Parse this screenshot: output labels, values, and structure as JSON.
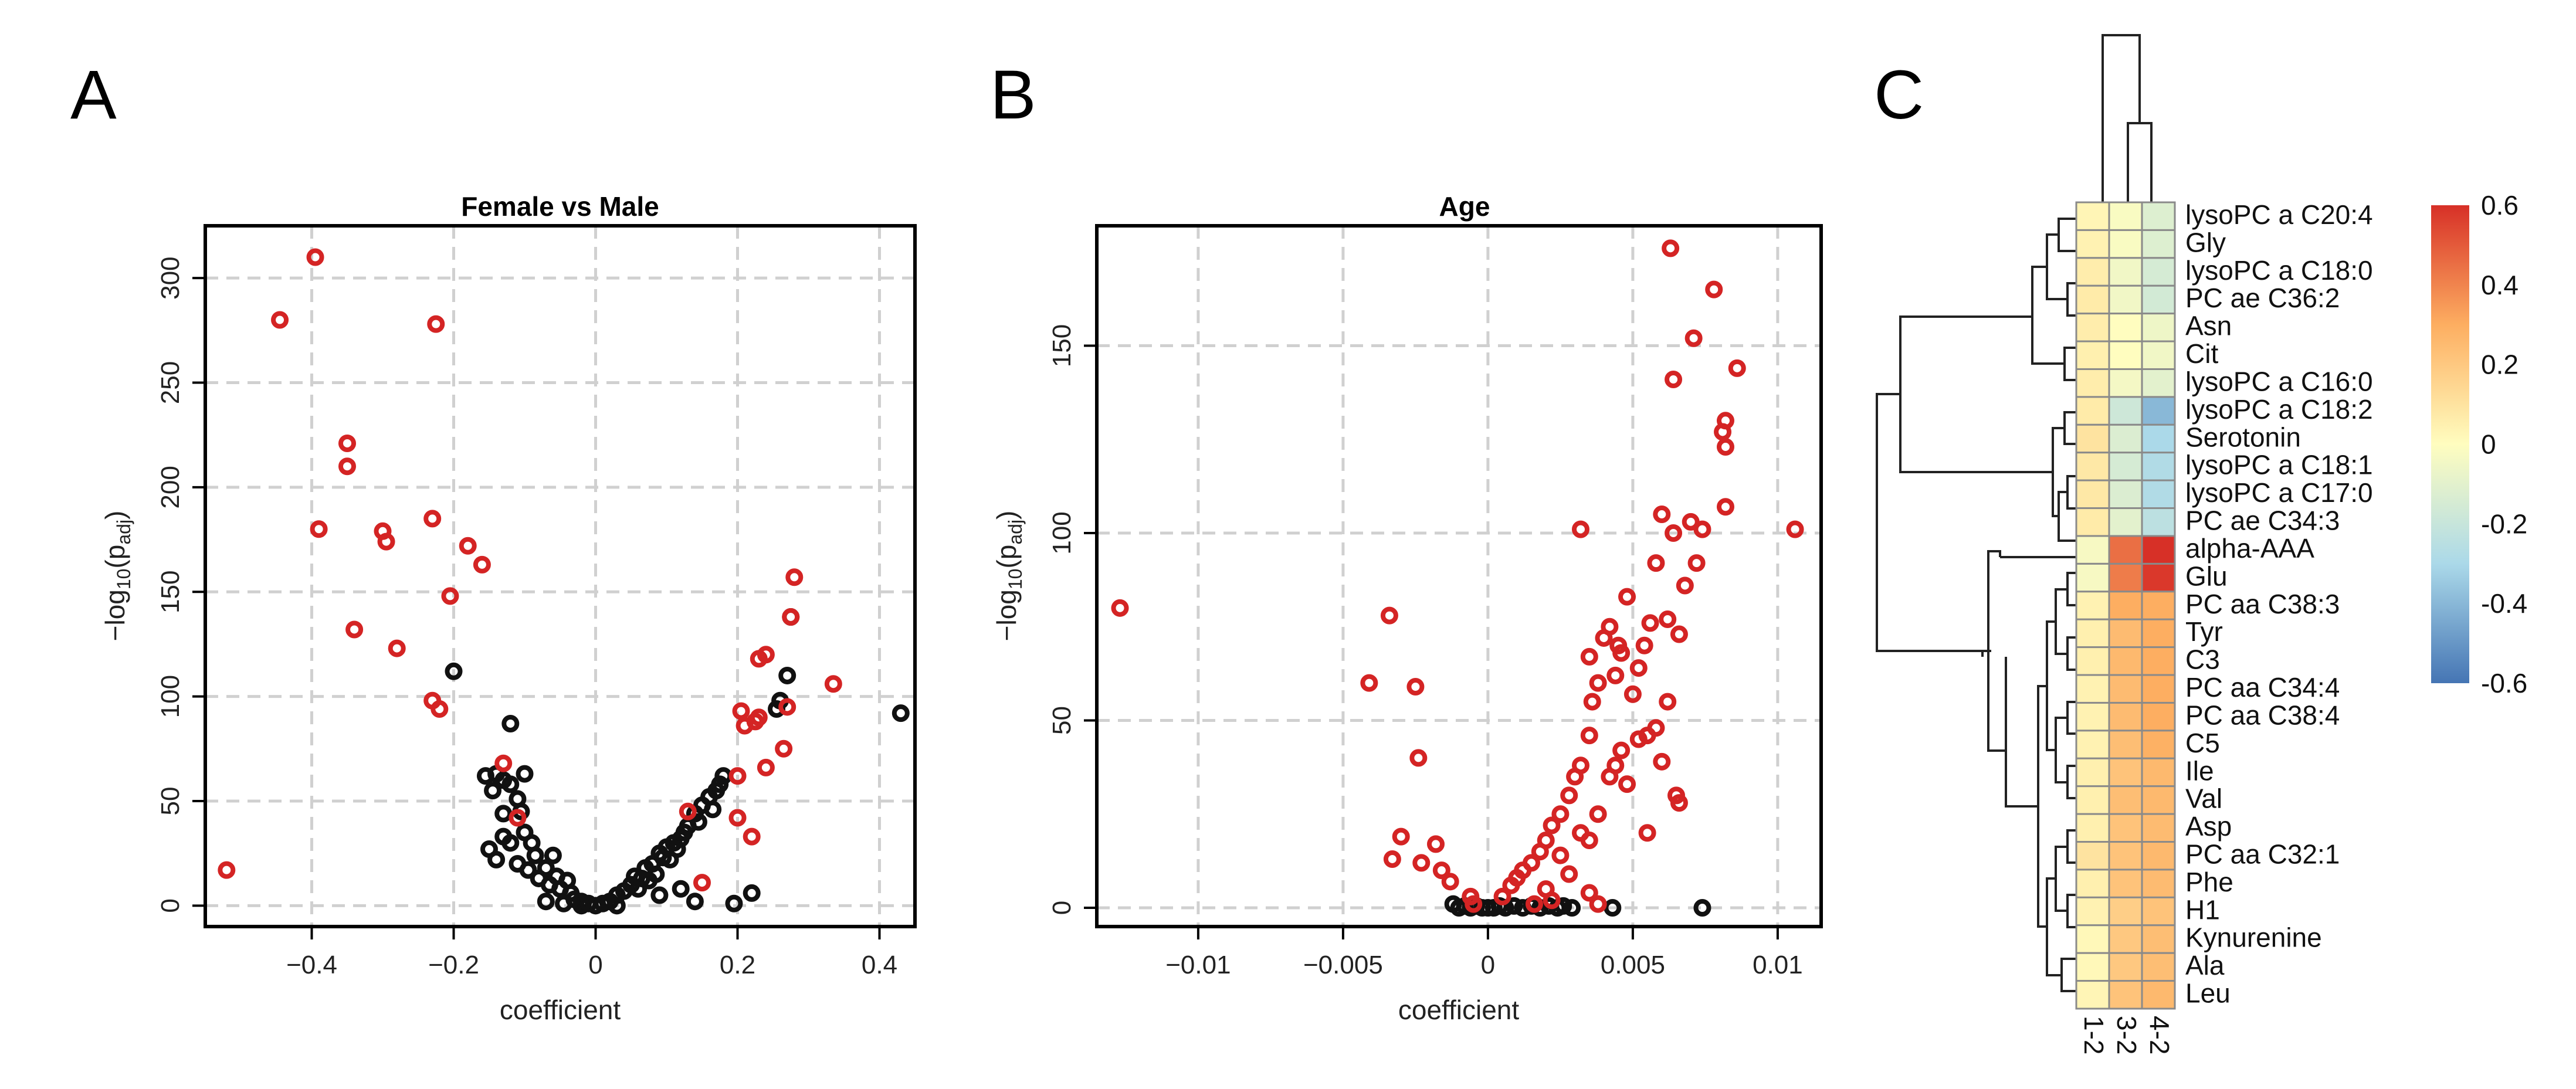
{
  "chart_data": [
    {
      "panel": "A",
      "type": "scatter",
      "title": "Female vs Male",
      "xlabel": "coefficient",
      "ylabel_main": "−log",
      "ylabel_sub1": "10",
      "ylabel_mid": "(p",
      "ylabel_sub2": "adj",
      "ylabel_end": ")",
      "xlim": [
        -0.55,
        0.45
      ],
      "ylim": [
        -10,
        325
      ],
      "xticks": [
        -0.4,
        -0.2,
        0,
        0.2,
        0.4
      ],
      "xtick_labels": [
        "−0.4",
        "−0.2",
        "0",
        "0.2",
        "0.4"
      ],
      "yticks": [
        0,
        50,
        100,
        150,
        200,
        250,
        300
      ],
      "ytick_labels": [
        "0",
        "50",
        "100",
        "150",
        "200",
        "250",
        "300"
      ],
      "grid": true,
      "series": [
        {
          "name": "significant",
          "color": "#d42424",
          "points": [
            [
              -0.52,
              17
            ],
            [
              -0.445,
              280
            ],
            [
              -0.395,
              310
            ],
            [
              -0.39,
              180
            ],
            [
              -0.35,
              221
            ],
            [
              -0.35,
              210
            ],
            [
              -0.34,
              132
            ],
            [
              -0.3,
              179
            ],
            [
              -0.295,
              174
            ],
            [
              -0.28,
              123
            ],
            [
              -0.23,
              185
            ],
            [
              -0.225,
              278
            ],
            [
              -0.23,
              98
            ],
            [
              -0.22,
              94
            ],
            [
              -0.205,
              148
            ],
            [
              -0.18,
              172
            ],
            [
              -0.16,
              163
            ],
            [
              -0.13,
              68
            ],
            [
              -0.11,
              42
            ],
            [
              0.13,
              45
            ],
            [
              0.15,
              11
            ],
            [
              0.2,
              62
            ],
            [
              0.2,
              42
            ],
            [
              0.205,
              93
            ],
            [
              0.21,
              86
            ],
            [
              0.22,
              33
            ],
            [
              0.225,
              88
            ],
            [
              0.23,
              90
            ],
            [
              0.23,
              118
            ],
            [
              0.24,
              120
            ],
            [
              0.24,
              66
            ],
            [
              0.265,
              75
            ],
            [
              0.27,
              95
            ],
            [
              0.275,
              138
            ],
            [
              0.28,
              157
            ],
            [
              0.335,
              106
            ]
          ]
        },
        {
          "name": "not significant",
          "color": "#111111",
          "points": [
            [
              -0.2,
              112
            ],
            [
              -0.12,
              87
            ],
            [
              -0.155,
              62
            ],
            [
              -0.145,
              55
            ],
            [
              -0.14,
              63
            ],
            [
              -0.13,
              60
            ],
            [
              -0.13,
              44
            ],
            [
              -0.12,
              58
            ],
            [
              -0.11,
              51
            ],
            [
              -0.105,
              45
            ],
            [
              -0.1,
              63
            ],
            [
              -0.15,
              27
            ],
            [
              -0.14,
              22
            ],
            [
              -0.13,
              33
            ],
            [
              -0.12,
              30
            ],
            [
              -0.11,
              20
            ],
            [
              -0.1,
              35
            ],
            [
              -0.095,
              17
            ],
            [
              -0.09,
              30
            ],
            [
              -0.085,
              24
            ],
            [
              -0.08,
              13
            ],
            [
              -0.07,
              18
            ],
            [
              -0.065,
              10
            ],
            [
              -0.06,
              24
            ],
            [
              -0.055,
              14
            ],
            [
              -0.05,
              8
            ],
            [
              -0.04,
              12
            ],
            [
              -0.035,
              6
            ],
            [
              -0.03,
              3
            ],
            [
              -0.02,
              2
            ],
            [
              -0.01,
              1
            ],
            [
              0,
              0
            ],
            [
              0.01,
              1
            ],
            [
              0.02,
              2
            ],
            [
              0.03,
              5
            ],
            [
              0.04,
              7
            ],
            [
              0.05,
              10
            ],
            [
              0.055,
              14
            ],
            [
              0.06,
              8
            ],
            [
              0.065,
              13
            ],
            [
              0.07,
              18
            ],
            [
              0.075,
              12
            ],
            [
              0.08,
              20
            ],
            [
              0.085,
              15
            ],
            [
              0.09,
              25
            ],
            [
              0.095,
              23
            ],
            [
              0.1,
              28
            ],
            [
              0.105,
              22
            ],
            [
              0.11,
              30
            ],
            [
              0.115,
              27
            ],
            [
              0.12,
              32
            ],
            [
              0.125,
              35
            ],
            [
              0.13,
              38
            ],
            [
              0.14,
              44
            ],
            [
              0.145,
              40
            ],
            [
              0.15,
              48
            ],
            [
              0.16,
              52
            ],
            [
              0.165,
              46
            ],
            [
              0.17,
              55
            ],
            [
              0.175,
              58
            ],
            [
              0.18,
              62
            ],
            [
              0.09,
              5
            ],
            [
              0.12,
              8
            ],
            [
              0.14,
              2
            ],
            [
              0.195,
              1
            ],
            [
              0.22,
              6
            ],
            [
              0.255,
              94
            ],
            [
              0.26,
              98
            ],
            [
              0.27,
              110
            ],
            [
              0.275,
              138
            ],
            [
              0.43,
              92
            ],
            [
              -0.07,
              2
            ],
            [
              -0.045,
              1
            ],
            [
              -0.02,
              0
            ],
            [
              0.03,
              0
            ]
          ]
        }
      ]
    },
    {
      "panel": "B",
      "type": "scatter",
      "title": "Age",
      "xlabel": "coefficient",
      "ylabel_main": "−log",
      "ylabel_sub1": "10",
      "ylabel_mid": "(p",
      "ylabel_sub2": "adj",
      "ylabel_end": ")",
      "xlim": [
        -0.0135,
        0.0115
      ],
      "ylim": [
        -5,
        182
      ],
      "xticks": [
        -0.01,
        -0.005,
        0,
        0.005,
        0.01
      ],
      "xtick_labels": [
        "−0.01",
        "−0.005",
        "0",
        "0.005",
        "0.01"
      ],
      "yticks": [
        0,
        50,
        100,
        150
      ],
      "ytick_labels": [
        "0",
        "50",
        "100",
        "150"
      ],
      "grid": true,
      "series": [
        {
          "name": "significant",
          "color": "#d42424",
          "points": [
            [
              -0.0127,
              80
            ],
            [
              -0.0034,
              78
            ],
            [
              -0.0041,
              60
            ],
            [
              -0.0025,
              59
            ],
            [
              -0.0024,
              40
            ],
            [
              -0.0033,
              13
            ],
            [
              -0.003,
              19
            ],
            [
              -0.0023,
              12
            ],
            [
              -0.0018,
              17
            ],
            [
              -0.0016,
              10
            ],
            [
              -0.0013,
              7
            ],
            [
              -0.0006,
              3
            ],
            [
              -0.0005,
              1
            ],
            [
              0.0005,
              3
            ],
            [
              0.0008,
              6
            ],
            [
              0.001,
              8
            ],
            [
              0.0012,
              10
            ],
            [
              0.0015,
              12
            ],
            [
              0.0018,
              15
            ],
            [
              0.002,
              18
            ],
            [
              0.0022,
              22
            ],
            [
              0.0025,
              25
            ],
            [
              0.0028,
              30
            ],
            [
              0.003,
              35
            ],
            [
              0.0032,
              38
            ],
            [
              0.0035,
              46
            ],
            [
              0.0036,
              55
            ],
            [
              0.0038,
              60
            ],
            [
              0.004,
              72
            ],
            [
              0.0042,
              75
            ],
            [
              0.0044,
              62
            ],
            [
              0.0046,
              68
            ],
            [
              0.0048,
              83
            ],
            [
              0.005,
              57
            ],
            [
              0.0052,
              64
            ],
            [
              0.0054,
              70
            ],
            [
              0.0056,
              76
            ],
            [
              0.0058,
              92
            ],
            [
              0.006,
              105
            ],
            [
              0.0062,
              77
            ],
            [
              0.0064,
              100
            ],
            [
              0.0066,
              73
            ],
            [
              0.0068,
              86
            ],
            [
              0.007,
              103
            ],
            [
              0.0072,
              92
            ],
            [
              0.0074,
              101
            ],
            [
              0.0063,
              176
            ],
            [
              0.0064,
              141
            ],
            [
              0.0071,
              152
            ],
            [
              0.0078,
              165
            ],
            [
              0.0082,
              130
            ],
            [
              0.0086,
              144
            ],
            [
              0.0081,
              127
            ],
            [
              0.0082,
              123
            ],
            [
              0.0082,
              107
            ],
            [
              0.0106,
              101
            ],
            [
              0.0032,
              101
            ],
            [
              0.0035,
              67
            ],
            [
              0.0045,
              70
            ],
            [
              0.0055,
              46
            ],
            [
              0.0058,
              48
            ],
            [
              0.006,
              39
            ],
            [
              0.0062,
              55
            ],
            [
              0.0065,
              30
            ],
            [
              0.0066,
              28
            ],
            [
              0.0035,
              18
            ],
            [
              0.0038,
              25
            ],
            [
              0.0042,
              35
            ],
            [
              0.0044,
              38
            ],
            [
              0.0046,
              42
            ],
            [
              0.0048,
              33
            ],
            [
              0.0052,
              45
            ],
            [
              0.002,
              5
            ],
            [
              0.0025,
              14
            ],
            [
              0.0028,
              9
            ],
            [
              0.0032,
              20
            ],
            [
              0.0035,
              4
            ],
            [
              0.0038,
              1
            ],
            [
              0.0055,
              20
            ],
            [
              0.0022,
              2
            ],
            [
              0.0016,
              1
            ]
          ]
        },
        {
          "name": "not significant",
          "color": "#111111",
          "points": [
            [
              -0.0012,
              1
            ],
            [
              -0.001,
              0
            ],
            [
              -0.0008,
              0.5
            ],
            [
              -0.0006,
              0
            ],
            [
              -0.0004,
              0.5
            ],
            [
              -0.0002,
              0
            ],
            [
              0,
              0
            ],
            [
              0.0002,
              0
            ],
            [
              0.0004,
              0.5
            ],
            [
              0.0006,
              0
            ],
            [
              0.0009,
              0.5
            ],
            [
              0.0012,
              0
            ],
            [
              0.0015,
              0.5
            ],
            [
              0.0018,
              0
            ],
            [
              0.0021,
              0.5
            ],
            [
              0.0024,
              0
            ],
            [
              0.0026,
              0.5
            ],
            [
              0.0029,
              0
            ],
            [
              0.0043,
              0
            ],
            [
              0.0074,
              0
            ]
          ]
        }
      ]
    },
    {
      "panel": "C",
      "type": "heatmap",
      "columns": [
        "1-2",
        "3-2",
        "4-2"
      ],
      "rows": [
        "lysoPC a C20:4",
        "Gly",
        "lysoPC a C18:0",
        "PC ae C36:2",
        "Asn",
        "Cit",
        "lysoPC a C16:0",
        "lysoPC a C18:2",
        "Serotonin",
        "lysoPC a C18:1",
        "lysoPC a C17:0",
        "PC ae C34:3",
        "alpha-AAA",
        "Glu",
        "PC aa C38:3",
        "Tyr",
        "C3",
        "PC aa C34:4",
        "PC aa C38:4",
        "C5",
        "Ile",
        "Val",
        "Asp",
        "PC aa C32:1",
        "Phe",
        "H1",
        "Kynurenine",
        "Ala",
        "Leu"
      ],
      "values": [
        [
          0.03,
          -0.02,
          -0.12
        ],
        [
          0.04,
          -0.02,
          -0.12
        ],
        [
          0.06,
          -0.05,
          -0.15
        ],
        [
          0.07,
          -0.05,
          -0.16
        ],
        [
          0.06,
          0.0,
          -0.06
        ],
        [
          0.05,
          0.0,
          -0.05
        ],
        [
          0.06,
          -0.04,
          -0.1
        ],
        [
          0.07,
          -0.18,
          -0.4
        ],
        [
          0.1,
          -0.13,
          -0.3
        ],
        [
          0.08,
          -0.15,
          -0.28
        ],
        [
          0.08,
          -0.13,
          -0.28
        ],
        [
          0.07,
          -0.1,
          -0.24
        ],
        [
          -0.03,
          0.45,
          0.6
        ],
        [
          -0.03,
          0.42,
          0.58
        ],
        [
          0.04,
          0.3,
          0.3
        ],
        [
          0.05,
          0.25,
          0.3
        ],
        [
          0.05,
          0.26,
          0.3
        ],
        [
          0.04,
          0.25,
          0.3
        ],
        [
          0.04,
          0.25,
          0.3
        ],
        [
          0.04,
          0.24,
          0.29
        ],
        [
          0.05,
          0.22,
          0.26
        ],
        [
          0.05,
          0.24,
          0.26
        ],
        [
          0.05,
          0.22,
          0.25
        ],
        [
          0.1,
          0.22,
          0.26
        ],
        [
          0.05,
          0.22,
          0.25
        ],
        [
          0.04,
          0.18,
          0.22
        ],
        [
          0.02,
          0.2,
          0.24
        ],
        [
          0.02,
          0.2,
          0.24
        ],
        [
          0.03,
          0.22,
          0.26
        ]
      ],
      "color_scale": {
        "min": -0.6,
        "max": 0.6,
        "low": "#4575b4",
        "mid": "#fffdbf",
        "high": "#d73027"
      },
      "colorbar_ticks": [
        0.6,
        0.4,
        0.2,
        0,
        -0.2,
        -0.4,
        -0.6
      ],
      "colorbar_labels": [
        "0.6",
        "0.4",
        "0.2",
        "0",
        "-0.2",
        "-0.4",
        "-0.6"
      ]
    }
  ],
  "panel_letters": {
    "a": "A",
    "b": "B",
    "c": "C"
  }
}
